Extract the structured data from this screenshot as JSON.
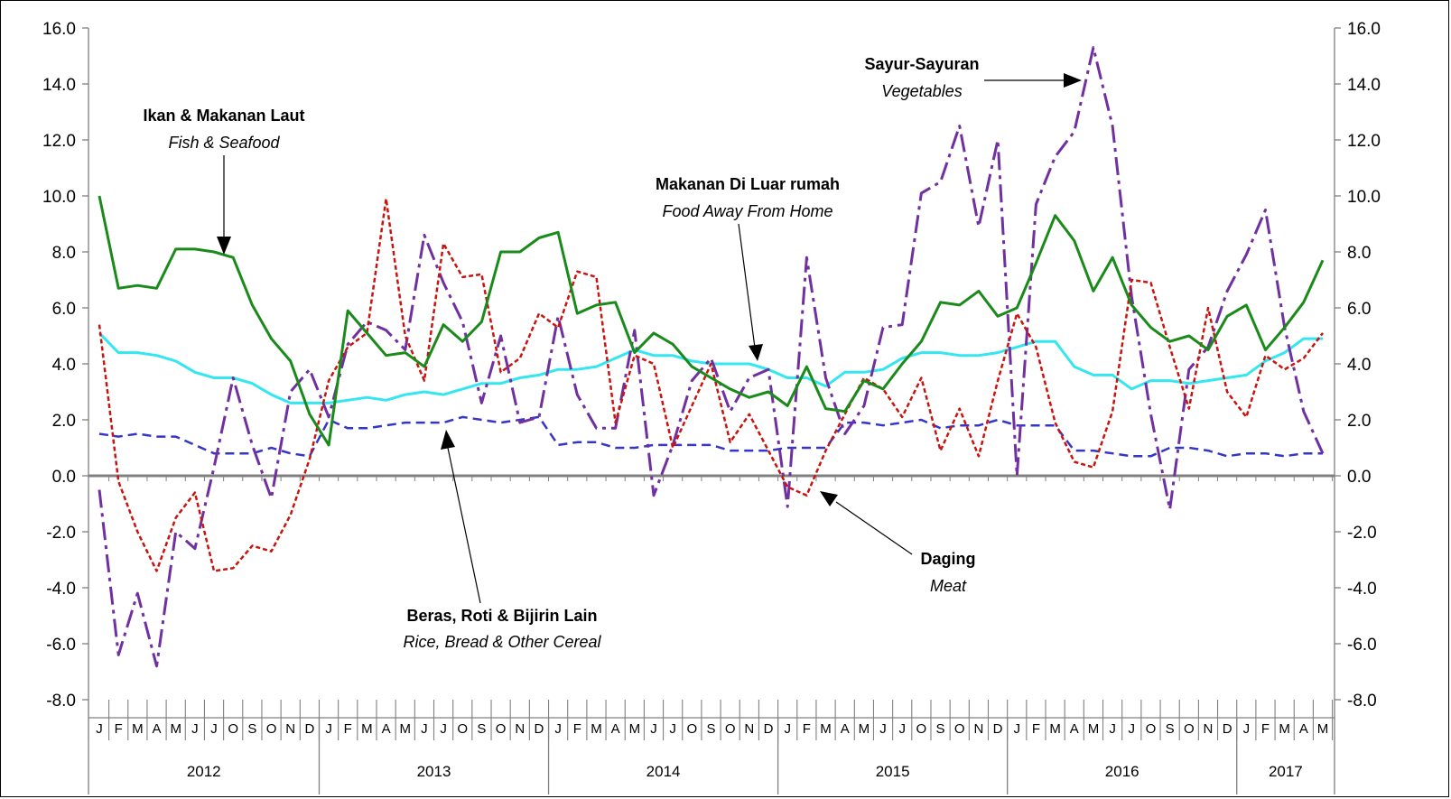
{
  "chart_data": {
    "type": "line",
    "ylim": [
      -8.0,
      16.0
    ],
    "yticks": [
      "16.0",
      "14.0",
      "12.0",
      "10.0",
      "8.0",
      "6.0",
      "4.0",
      "2.0",
      "0.0",
      "-2.0",
      "-4.0",
      "-6.0",
      "-8.0"
    ],
    "months": [
      "J",
      "F",
      "M",
      "A",
      "M",
      "J",
      "J",
      "O",
      "S",
      "O",
      "N",
      "D",
      "J",
      "F",
      "M",
      "A",
      "M",
      "J",
      "J",
      "O",
      "S",
      "O",
      "N",
      "D",
      "J",
      "F",
      "M",
      "A",
      "M",
      "J",
      "J",
      "O",
      "S",
      "O",
      "N",
      "D",
      "J",
      "F",
      "M",
      "A",
      "M",
      "J",
      "J",
      "O",
      "S",
      "O",
      "N",
      "D",
      "J",
      "F",
      "M",
      "A",
      "M",
      "J",
      "J",
      "O",
      "S",
      "O",
      "N",
      "D",
      "J",
      "F",
      "M",
      "A",
      "M"
    ],
    "years": [
      {
        "label": "2012",
        "months": 12
      },
      {
        "label": "2013",
        "months": 12
      },
      {
        "label": "2014",
        "months": 12
      },
      {
        "label": "2015",
        "months": 12
      },
      {
        "label": "2016",
        "months": 12
      },
      {
        "label": "2017",
        "months": 5
      }
    ],
    "series": [
      {
        "key": "fish",
        "color": "#1a8a1a",
        "style": "solid",
        "values": [
          10.0,
          6.7,
          6.8,
          6.7,
          8.1,
          8.1,
          8.0,
          7.8,
          6.1,
          4.9,
          4.1,
          2.2,
          1.1,
          5.9,
          5.1,
          4.3,
          4.4,
          3.9,
          5.4,
          4.8,
          5.5,
          8.0,
          8.0,
          8.5,
          8.7,
          5.8,
          6.1,
          6.2,
          4.4,
          5.1,
          4.7,
          3.9,
          3.5,
          3.1,
          2.8,
          3.0,
          2.5,
          3.9,
          2.4,
          2.3,
          3.4,
          3.1,
          4.0,
          4.8,
          6.2,
          6.1,
          6.6,
          5.7,
          6.0,
          7.6,
          9.3,
          8.4,
          6.6,
          7.8,
          6.1,
          5.3,
          4.8,
          5.0,
          4.5,
          5.7,
          6.1,
          4.5,
          5.3,
          6.2,
          7.7
        ]
      },
      {
        "key": "food-away",
        "color": "#33e6f0",
        "style": "solid",
        "values": [
          5.1,
          4.4,
          4.4,
          4.3,
          4.1,
          3.7,
          3.5,
          3.5,
          3.3,
          2.9,
          2.6,
          2.6,
          2.6,
          2.7,
          2.8,
          2.7,
          2.9,
          3.0,
          2.9,
          3.1,
          3.3,
          3.3,
          3.5,
          3.6,
          3.8,
          3.8,
          3.9,
          4.2,
          4.5,
          4.3,
          4.3,
          4.1,
          4.0,
          4.0,
          4.0,
          3.8,
          3.5,
          3.5,
          3.2,
          3.7,
          3.7,
          3.8,
          4.2,
          4.4,
          4.4,
          4.3,
          4.3,
          4.4,
          4.6,
          4.8,
          4.8,
          3.9,
          3.6,
          3.6,
          3.1,
          3.4,
          3.4,
          3.3,
          3.4,
          3.5,
          3.6,
          4.1,
          4.4,
          4.9,
          4.9
        ]
      },
      {
        "key": "cereal",
        "color": "#3535c8",
        "style": "dashed",
        "values": [
          1.5,
          1.4,
          1.5,
          1.4,
          1.4,
          1.1,
          0.8,
          0.8,
          0.8,
          1.0,
          0.8,
          0.7,
          2.0,
          1.7,
          1.7,
          1.8,
          1.9,
          1.9,
          1.9,
          2.1,
          2.0,
          1.9,
          2.0,
          2.1,
          1.1,
          1.2,
          1.2,
          1.0,
          1.0,
          1.1,
          1.1,
          1.1,
          1.1,
          0.9,
          0.9,
          0.9,
          1.0,
          1.0,
          1.0,
          1.9,
          1.9,
          1.8,
          1.9,
          2.0,
          1.7,
          1.8,
          1.8,
          2.0,
          1.8,
          1.8,
          1.8,
          0.9,
          0.9,
          0.8,
          0.7,
          0.7,
          1.0,
          1.0,
          0.9,
          0.7,
          0.8,
          0.8,
          0.7,
          0.8,
          0.8
        ]
      },
      {
        "key": "meat",
        "color": "#c8140f",
        "style": "dotted",
        "values": [
          5.4,
          -0.2,
          -2.0,
          -3.4,
          -1.5,
          -0.6,
          -3.4,
          -3.3,
          -2.5,
          -2.7,
          -1.4,
          0.6,
          3.4,
          4.6,
          5.1,
          9.9,
          5.0,
          3.4,
          8.3,
          7.1,
          7.2,
          3.7,
          4.2,
          5.8,
          5.3,
          7.3,
          7.1,
          1.9,
          4.3,
          4.0,
          1.0,
          2.5,
          4.0,
          1.2,
          2.2,
          0.9,
          -0.4,
          -0.7,
          0.9,
          2.2,
          3.5,
          3.1,
          2.1,
          3.5,
          0.9,
          2.4,
          0.7,
          3.4,
          5.8,
          4.6,
          1.9,
          0.5,
          0.3,
          2.3,
          7.0,
          6.9,
          4.6,
          2.4,
          6.0,
          3.0,
          2.1,
          4.3,
          3.8,
          4.2,
          5.1
        ]
      },
      {
        "key": "vegetables",
        "color": "#7030a0",
        "style": "dashdot",
        "values": [
          -0.5,
          -6.4,
          -4.2,
          -6.8,
          -2.0,
          -2.6,
          0.3,
          3.5,
          1.1,
          -0.8,
          3.0,
          3.8,
          2.1,
          4.7,
          5.5,
          5.2,
          4.5,
          8.6,
          6.9,
          5.5,
          2.6,
          5.0,
          1.9,
          2.1,
          5.7,
          2.9,
          1.7,
          1.7,
          5.2,
          -0.7,
          1.1,
          3.4,
          4.2,
          2.3,
          3.5,
          3.8,
          -1.1,
          7.8,
          3.5,
          1.5,
          2.5,
          5.3,
          5.4,
          10.1,
          10.5,
          12.5,
          8.9,
          12.0,
          0.0,
          9.7,
          11.4,
          12.3,
          15.3,
          12.5,
          6.4,
          2.2,
          -1.2,
          3.8,
          4.6,
          6.6,
          7.9,
          9.5,
          5.3,
          2.3,
          0.8
        ]
      }
    ],
    "annotations": {
      "fish": {
        "title": "Ikan  & Makanan Laut",
        "subtitle": "Fish & Seafood"
      },
      "food_away": {
        "title": "Makanan Di Luar rumah",
        "subtitle": "Food Away From Home"
      },
      "vegetables": {
        "title": "Sayur-Sayuran",
        "subtitle": "Vegetables"
      },
      "meat": {
        "title": "Daging",
        "subtitle": "Meat"
      },
      "cereal": {
        "title": "Beras, Roti  & Bijirin Lain",
        "subtitle": "Rice, Bread & Other Cereal"
      }
    }
  }
}
